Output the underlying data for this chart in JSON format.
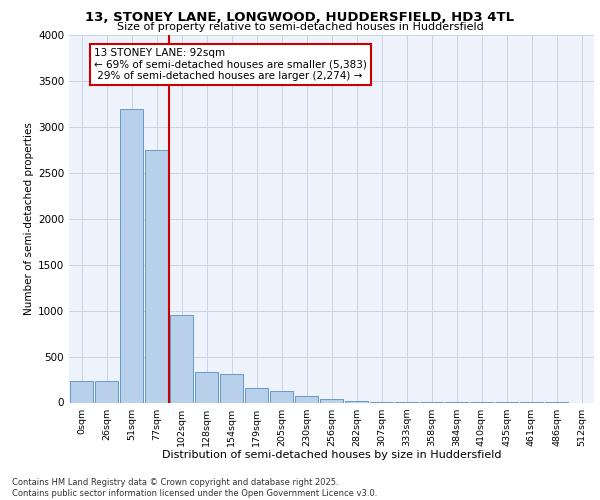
{
  "title": "13, STONEY LANE, LONGWOOD, HUDDERSFIELD, HD3 4TL",
  "subtitle": "Size of property relative to semi-detached houses in Huddersfield",
  "xlabel": "Distribution of semi-detached houses by size in Huddersfield",
  "ylabel": "Number of semi-detached properties",
  "bin_labels": [
    "0sqm",
    "26sqm",
    "51sqm",
    "77sqm",
    "102sqm",
    "128sqm",
    "154sqm",
    "179sqm",
    "205sqm",
    "230sqm",
    "256sqm",
    "282sqm",
    "307sqm",
    "333sqm",
    "358sqm",
    "384sqm",
    "410sqm",
    "435sqm",
    "461sqm",
    "486sqm",
    "512sqm"
  ],
  "bar_values": [
    230,
    230,
    3200,
    2750,
    950,
    330,
    310,
    155,
    120,
    75,
    40,
    15,
    10,
    8,
    5,
    5,
    3,
    2,
    2,
    1,
    0
  ],
  "bar_color": "#b8d0ea",
  "bar_edge_color": "#6699cc",
  "vline_x": 3.5,
  "property_sqm": 92,
  "pct_smaller": 69,
  "count_smaller": "5,383",
  "pct_larger": 29,
  "count_larger": "2,274",
  "annotation_box_color": "#cc0000",
  "vline_color": "#cc0000",
  "grid_color": "#c8d4e8",
  "background_color": "#eef2fa",
  "footer_text": "Contains HM Land Registry data © Crown copyright and database right 2025.\nContains public sector information licensed under the Open Government Licence v3.0.",
  "ylim": [
    0,
    4000
  ],
  "yticks": [
    0,
    500,
    1000,
    1500,
    2000,
    2500,
    3000,
    3500,
    4000
  ]
}
